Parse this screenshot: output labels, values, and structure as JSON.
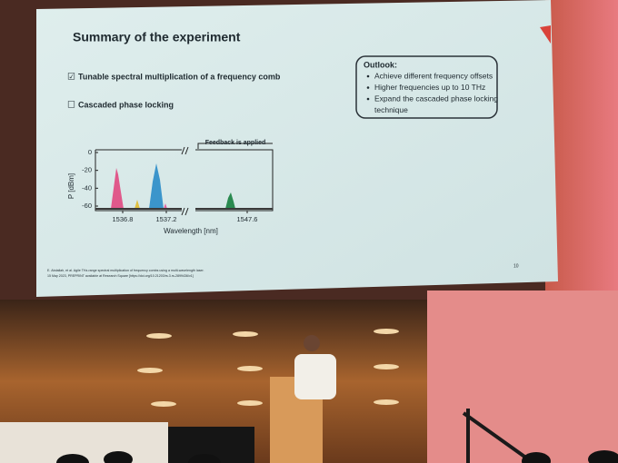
{
  "slide": {
    "title": "Summary of the experiment",
    "bullets": [
      "Tunable spectral multiplication of a frequency comb",
      "Cascaded phase locking"
    ],
    "outlook": {
      "title": "Outlook:",
      "items": [
        [
          "Achieve different frequency offsets"
        ],
        [
          "Higher frequencies up to 10 THz"
        ],
        [
          "Expand the cascaded phase locking",
          "technique"
        ]
      ]
    },
    "chart": {
      "annotation": "Feedback is applied",
      "ylabel": "P [dBm]",
      "xlabel": "Wavelength [nm]",
      "yticks": [
        0,
        -20,
        -40,
        -60
      ],
      "xticks": [
        1536.8,
        1537.2,
        1547.6
      ]
    },
    "footnote": [
      "E. Abdallah, et al. Agile THz-range spectral multiplication of frequency combs using a multi-wavelength laser.",
      "15 May 2023, PREPRINT available at Research Square [https://doi.org/10.21203/rs.3.rs-2899436/v1]"
    ],
    "page_number": "10"
  }
}
